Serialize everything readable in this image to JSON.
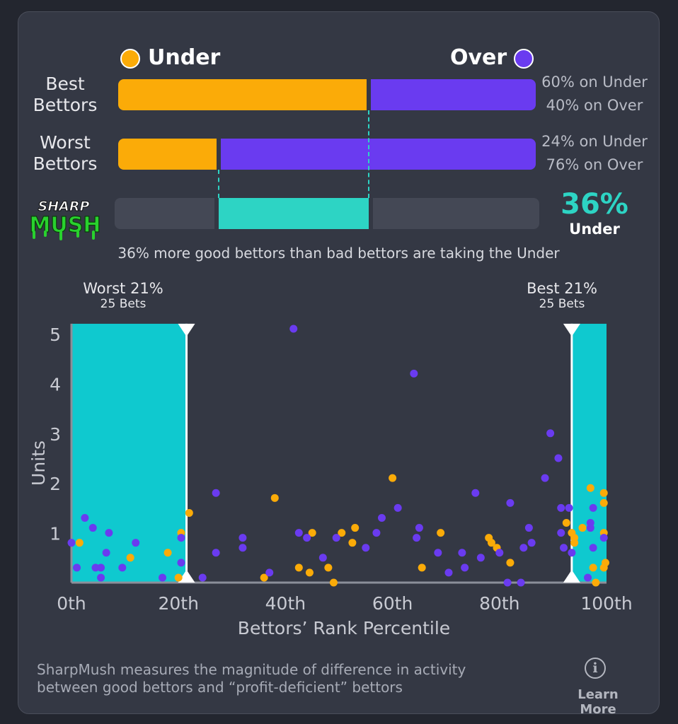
{
  "legend": {
    "under_label": "Under",
    "over_label": "Over"
  },
  "colors": {
    "under": "#fbab08",
    "over": "#6a3bf0",
    "accent": "#2dd4c4",
    "zone": "#0fc9cf",
    "track": "#444855"
  },
  "rows": [
    {
      "label_line1": "Best",
      "label_line2": "Bettors",
      "under_pct": 60,
      "over_pct": 40,
      "under_text": "60% on Under",
      "over_text": "40% on Over"
    },
    {
      "label_line1": "Worst",
      "label_line2": "Bettors",
      "under_pct": 24,
      "over_pct": 76,
      "under_text": "24% on Under",
      "over_text": "76% on Over"
    }
  ],
  "difference": {
    "logo_line1": "SHARP",
    "logo_line2": "MUSH",
    "value_text": "36%",
    "side": "Under",
    "caption": "36% more good bettors than bad bettors are taking the Under"
  },
  "zones": {
    "worst_title": "Worst 21%",
    "worst_sub": "25 Bets",
    "best_title": "Best 21%",
    "best_sub": "25 Bets"
  },
  "chart_data": {
    "type": "scatter",
    "title": "",
    "xlabel": "Bettors’ Rank Percentile",
    "ylabel": "Units",
    "xlim": [
      0,
      100
    ],
    "ylim": [
      0,
      5.2
    ],
    "xticks": [
      0,
      20,
      40,
      60,
      80,
      100
    ],
    "xtick_labels": [
      "0th",
      "20th",
      "40th",
      "60th",
      "80th",
      "100th"
    ],
    "yticks": [
      1,
      2,
      3,
      4,
      5
    ],
    "ytick_labels": [
      "1",
      "2",
      "3",
      "4",
      "5"
    ],
    "shaded_ranges": [
      [
        0,
        21.5
      ],
      [
        93.5,
        100
      ]
    ],
    "series": [
      {
        "name": "Under",
        "points": [
          [
            1.5,
            0.8
          ],
          [
            11,
            0.5
          ],
          [
            18,
            0.6
          ],
          [
            20.5,
            1.0
          ],
          [
            20,
            0.1
          ],
          [
            22,
            1.4
          ],
          [
            36,
            0.1
          ],
          [
            38,
            1.7
          ],
          [
            42.5,
            0.3
          ],
          [
            44.5,
            0.2
          ],
          [
            45,
            1.0
          ],
          [
            48,
            0.3
          ],
          [
            49,
            0.0
          ],
          [
            50.5,
            1.0
          ],
          [
            52.5,
            0.8
          ],
          [
            53,
            1.1
          ],
          [
            60,
            2.1
          ],
          [
            65.5,
            0.3
          ],
          [
            69,
            1.0
          ],
          [
            78,
            0.9
          ],
          [
            78.5,
            0.8
          ],
          [
            79.5,
            0.7
          ],
          [
            82,
            0.4
          ],
          [
            92.5,
            1.2
          ],
          [
            93.5,
            1.0
          ],
          [
            94,
            0.9
          ],
          [
            94,
            0.8
          ],
          [
            95.5,
            1.1
          ],
          [
            97,
            1.9
          ],
          [
            97.5,
            0.3
          ],
          [
            98,
            0.0
          ],
          [
            99.5,
            1.8
          ],
          [
            99.5,
            1.6
          ],
          [
            99.5,
            1.0
          ],
          [
            99.5,
            0.3
          ],
          [
            99.8,
            0.4
          ]
        ]
      },
      {
        "name": "Over",
        "points": [
          [
            0,
            0.8
          ],
          [
            1,
            0.3
          ],
          [
            2.5,
            1.3
          ],
          [
            4,
            1.1
          ],
          [
            4.5,
            0.3
          ],
          [
            5.5,
            0.3
          ],
          [
            5.5,
            0.1
          ],
          [
            6.5,
            0.6
          ],
          [
            7,
            1.0
          ],
          [
            9.5,
            0.3
          ],
          [
            12,
            0.8
          ],
          [
            17,
            0.1
          ],
          [
            20.5,
            0.4
          ],
          [
            20.5,
            0.9
          ],
          [
            24.5,
            0.1
          ],
          [
            27,
            1.8
          ],
          [
            27,
            0.6
          ],
          [
            32,
            0.9
          ],
          [
            32,
            0.7
          ],
          [
            37,
            0.2
          ],
          [
            41.5,
            5.1
          ],
          [
            42.5,
            1.0
          ],
          [
            44,
            0.9
          ],
          [
            47,
            0.5
          ],
          [
            49.5,
            0.9
          ],
          [
            55,
            0.7
          ],
          [
            57,
            1.0
          ],
          [
            58,
            1.3
          ],
          [
            61,
            1.5
          ],
          [
            64,
            4.2
          ],
          [
            64.5,
            0.9
          ],
          [
            65,
            1.1
          ],
          [
            68.5,
            0.6
          ],
          [
            70.5,
            0.2
          ],
          [
            73,
            0.6
          ],
          [
            73.5,
            0.3
          ],
          [
            75.5,
            1.8
          ],
          [
            76.5,
            0.5
          ],
          [
            80,
            0.6
          ],
          [
            81.5,
            0.0
          ],
          [
            82,
            1.6
          ],
          [
            84,
            0.0
          ],
          [
            84.5,
            0.7
          ],
          [
            85.5,
            1.1
          ],
          [
            86,
            0.8
          ],
          [
            88.5,
            2.1
          ],
          [
            89.5,
            3.0
          ],
          [
            91,
            2.5
          ],
          [
            91.5,
            1.5
          ],
          [
            91.5,
            1.0
          ],
          [
            92,
            0.7
          ],
          [
            93,
            1.5
          ],
          [
            93.5,
            0.6
          ],
          [
            96.5,
            0.1
          ],
          [
            97,
            1.1
          ],
          [
            97,
            1.2
          ],
          [
            97.5,
            1.5
          ],
          [
            97.5,
            0.7
          ],
          [
            99.5,
            0.9
          ]
        ]
      }
    ]
  },
  "footer": {
    "text_line1": "SharpMush measures the magnitude of difference in activity",
    "text_line2": "between good bettors and “profit-deficient” bettors",
    "learn_more": "Learn More",
    "info_glyph": "i"
  }
}
